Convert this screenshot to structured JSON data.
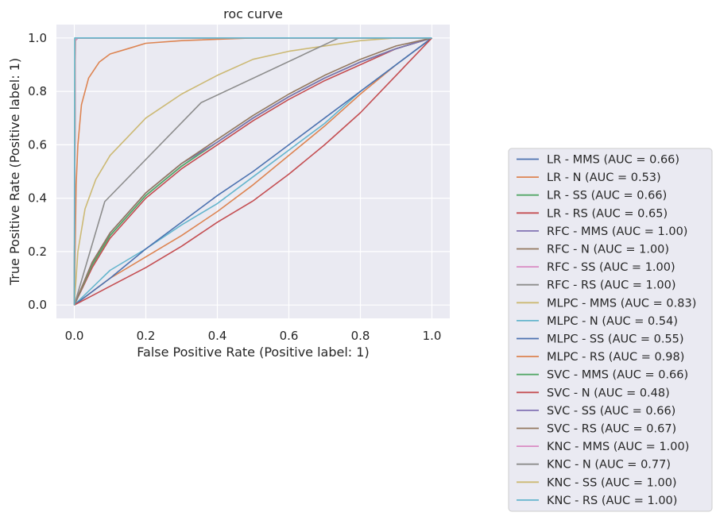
{
  "chart_data": {
    "type": "line",
    "title": "roc curve",
    "xlabel": "False Positive Rate (Positive label: 1)",
    "ylabel": "True Positive Rate (Positive label: 1)",
    "xlim": [
      -0.05,
      1.05
    ],
    "ylim": [
      -0.05,
      1.05
    ],
    "xticks": [
      0.0,
      0.2,
      0.4,
      0.6,
      0.8,
      1.0
    ],
    "yticks": [
      0.0,
      0.2,
      0.4,
      0.6,
      0.8,
      1.0
    ],
    "xtick_labels": [
      "0.0",
      "0.2",
      "0.4",
      "0.6",
      "0.8",
      "1.0"
    ],
    "ytick_labels": [
      "0.0",
      "0.2",
      "0.4",
      "0.6",
      "0.8",
      "1.0"
    ],
    "grid": true,
    "legend_position": "outside-right-bottom",
    "series": [
      {
        "name": "LR - MMS (AUC = 0.66)",
        "color": "#4c72b0",
        "x": [
          0,
          0.05,
          0.1,
          0.2,
          0.3,
          0.4,
          0.5,
          0.6,
          0.7,
          0.8,
          0.9,
          1.0
        ],
        "y": [
          0,
          0.15,
          0.26,
          0.41,
          0.52,
          0.61,
          0.7,
          0.78,
          0.85,
          0.91,
          0.96,
          1.0
        ]
      },
      {
        "name": "LR - N (AUC = 0.53)",
        "color": "#dd8452",
        "x": [
          0,
          0.1,
          0.2,
          0.3,
          0.4,
          0.5,
          0.6,
          0.7,
          0.8,
          0.9,
          1.0
        ],
        "y": [
          0,
          0.1,
          0.18,
          0.26,
          0.35,
          0.45,
          0.56,
          0.67,
          0.79,
          0.9,
          1.0
        ]
      },
      {
        "name": "LR - SS (AUC = 0.66)",
        "color": "#55a868",
        "x": [
          0,
          0.05,
          0.1,
          0.2,
          0.3,
          0.4,
          0.5,
          0.6,
          0.7,
          0.8,
          0.9,
          1.0
        ],
        "y": [
          0,
          0.15,
          0.26,
          0.41,
          0.52,
          0.61,
          0.7,
          0.78,
          0.85,
          0.91,
          0.96,
          1.0
        ]
      },
      {
        "name": "LR - RS (AUC = 0.65)",
        "color": "#c44e52",
        "x": [
          0,
          0.05,
          0.1,
          0.2,
          0.3,
          0.4,
          0.5,
          0.6,
          0.7,
          0.8,
          0.9,
          1.0
        ],
        "y": [
          0,
          0.14,
          0.25,
          0.4,
          0.51,
          0.6,
          0.69,
          0.77,
          0.84,
          0.9,
          0.96,
          1.0
        ]
      },
      {
        "name": "RFC - MMS (AUC = 1.00)",
        "color": "#8172b3",
        "x": [
          0,
          0.003,
          0.01,
          1.0
        ],
        "y": [
          0,
          0.99,
          1.0,
          1.0
        ]
      },
      {
        "name": "RFC - N (AUC = 1.00)",
        "color": "#937860",
        "x": [
          0,
          0.003,
          0.01,
          1.0
        ],
        "y": [
          0,
          0.99,
          1.0,
          1.0
        ]
      },
      {
        "name": "RFC - SS (AUC = 1.00)",
        "color": "#da8bc3",
        "x": [
          0,
          0.003,
          0.01,
          1.0
        ],
        "y": [
          0,
          0.99,
          1.0,
          1.0
        ]
      },
      {
        "name": "RFC - RS (AUC = 1.00)",
        "color": "#8c8c8c",
        "x": [
          0,
          0.003,
          0.01,
          1.0
        ],
        "y": [
          0,
          0.99,
          1.0,
          1.0
        ]
      },
      {
        "name": "MLPC - MMS (AUC = 0.83)",
        "color": "#ccb974",
        "x": [
          0,
          0.01,
          0.03,
          0.06,
          0.1,
          0.15,
          0.2,
          0.3,
          0.4,
          0.5,
          0.6,
          0.7,
          0.8,
          0.9,
          1.0
        ],
        "y": [
          0,
          0.2,
          0.36,
          0.47,
          0.56,
          0.63,
          0.7,
          0.79,
          0.86,
          0.92,
          0.95,
          0.97,
          0.99,
          1.0,
          1.0
        ]
      },
      {
        "name": "MLPC - N (AUC = 0.54)",
        "color": "#64b5cd",
        "x": [
          0,
          0.1,
          0.2,
          0.3,
          0.4,
          0.5,
          0.6,
          0.7,
          0.8,
          0.9,
          1.0
        ],
        "y": [
          0,
          0.13,
          0.21,
          0.3,
          0.38,
          0.48,
          0.58,
          0.68,
          0.8,
          0.9,
          1.0
        ]
      },
      {
        "name": "MLPC - SS (AUC = 0.55)",
        "color": "#4c72b0",
        "x": [
          0,
          0.1,
          0.2,
          0.3,
          0.4,
          0.5,
          0.6,
          0.7,
          0.8,
          0.9,
          1.0
        ],
        "y": [
          0,
          0.1,
          0.21,
          0.31,
          0.41,
          0.5,
          0.6,
          0.7,
          0.8,
          0.9,
          1.0
        ]
      },
      {
        "name": "MLPC - RS (AUC = 0.98)",
        "color": "#dd8452",
        "x": [
          0,
          0.005,
          0.01,
          0.02,
          0.04,
          0.07,
          0.1,
          0.15,
          0.2,
          0.3,
          0.5,
          0.7,
          1.0
        ],
        "y": [
          0,
          0.45,
          0.6,
          0.75,
          0.85,
          0.91,
          0.94,
          0.96,
          0.98,
          0.99,
          1.0,
          1.0,
          1.0
        ]
      },
      {
        "name": "SVC - MMS (AUC = 0.66)",
        "color": "#55a868",
        "x": [
          0,
          0.05,
          0.1,
          0.2,
          0.3,
          0.4,
          0.5,
          0.6,
          0.7,
          0.8,
          0.9,
          1.0
        ],
        "y": [
          0,
          0.15,
          0.26,
          0.41,
          0.52,
          0.61,
          0.7,
          0.78,
          0.85,
          0.91,
          0.96,
          1.0
        ]
      },
      {
        "name": "SVC - N (AUC = 0.48)",
        "color": "#c44e52",
        "x": [
          0,
          0.1,
          0.2,
          0.3,
          0.4,
          0.5,
          0.6,
          0.7,
          0.8,
          0.9,
          1.0
        ],
        "y": [
          0,
          0.07,
          0.14,
          0.22,
          0.31,
          0.39,
          0.49,
          0.6,
          0.72,
          0.86,
          1.0
        ]
      },
      {
        "name": "SVC - SS (AUC = 0.66)",
        "color": "#8172b3",
        "x": [
          0,
          0.05,
          0.1,
          0.2,
          0.3,
          0.4,
          0.5,
          0.6,
          0.7,
          0.8,
          0.9,
          1.0
        ],
        "y": [
          0,
          0.16,
          0.27,
          0.42,
          0.53,
          0.61,
          0.7,
          0.78,
          0.85,
          0.91,
          0.96,
          1.0
        ]
      },
      {
        "name": "SVC - RS (AUC = 0.67)",
        "color": "#937860",
        "x": [
          0,
          0.05,
          0.1,
          0.2,
          0.3,
          0.4,
          0.5,
          0.6,
          0.7,
          0.8,
          0.9,
          1.0
        ],
        "y": [
          0,
          0.16,
          0.27,
          0.42,
          0.53,
          0.62,
          0.71,
          0.79,
          0.86,
          0.92,
          0.97,
          1.0
        ]
      },
      {
        "name": "KNC - MMS (AUC = 1.00)",
        "color": "#da8bc3",
        "x": [
          0,
          0.003,
          0.01,
          1.0
        ],
        "y": [
          0,
          0.99,
          1.0,
          1.0
        ]
      },
      {
        "name": "KNC - N (AUC = 0.77)",
        "color": "#8c8c8c",
        "x": [
          0,
          0.085,
          0.355,
          0.74,
          1.0
        ],
        "y": [
          0,
          0.387,
          0.758,
          1.0,
          1.0
        ]
      },
      {
        "name": "KNC - SS (AUC = 1.00)",
        "color": "#ccb974",
        "x": [
          0,
          0.002,
          1.0
        ],
        "y": [
          0,
          1.0,
          1.0
        ]
      },
      {
        "name": "KNC - RS (AUC = 1.00)",
        "color": "#64b5cd",
        "x": [
          0,
          0.001,
          1.0
        ],
        "y": [
          0,
          1.0,
          1.0
        ]
      }
    ]
  }
}
